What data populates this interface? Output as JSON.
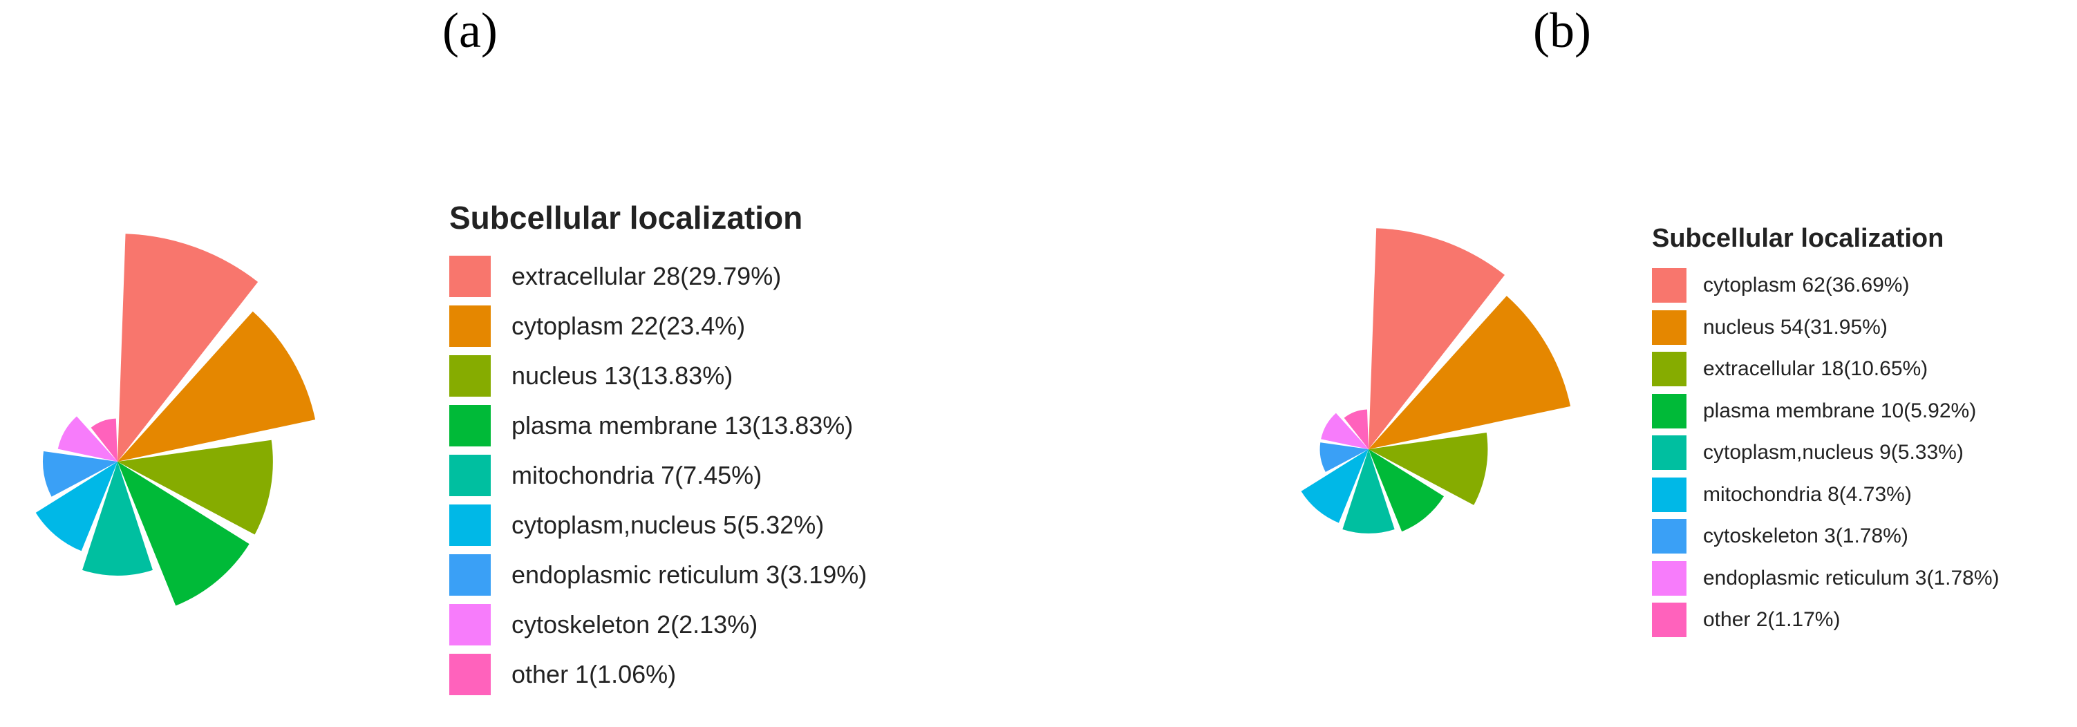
{
  "panels": [
    {
      "label": "(a)",
      "legend_title": "Subcellular localization",
      "items": [
        {
          "label": "extracellular 28(29.79%)",
          "color": "#F8766D"
        },
        {
          "label": "cytoplasm 22(23.4%)",
          "color": "#E58700"
        },
        {
          "label": "nucleus 13(13.83%)",
          "color": "#86AC00"
        },
        {
          "label": "plasma membrane 13(13.83%)",
          "color": "#00BA38"
        },
        {
          "label": "mitochondria 7(7.45%)",
          "color": "#00BFA0"
        },
        {
          "label": "cytoplasm,nucleus 5(5.32%)",
          "color": "#00B8E7"
        },
        {
          "label": "endoplasmic reticulum 3(3.19%)",
          "color": "#3AA0F6"
        },
        {
          "label": "cytoskeleton 2(2.13%)",
          "color": "#F77CFB"
        },
        {
          "label": "other 1(1.06%)",
          "color": "#FF62BC"
        }
      ]
    },
    {
      "label": "(b)",
      "legend_title": "Subcellular localization",
      "items": [
        {
          "label": "cytoplasm 62(36.69%)",
          "color": "#F8766D"
        },
        {
          "label": "nucleus 54(31.95%)",
          "color": "#E58700"
        },
        {
          "label": "extracellular 18(10.65%)",
          "color": "#86AC00"
        },
        {
          "label": "plasma membrane 10(5.92%)",
          "color": "#00BA38"
        },
        {
          "label": "cytoplasm,nucleus 9(5.33%)",
          "color": "#00BFA0"
        },
        {
          "label": "mitochondria 8(4.73%)",
          "color": "#00B8E7"
        },
        {
          "label": "cytoskeleton 3(1.78%)",
          "color": "#3AA0F6"
        },
        {
          "label": "endoplasmic reticulum 3(1.78%)",
          "color": "#F77CFB"
        },
        {
          "label": "other 2(1.17%)",
          "color": "#FF62BC"
        }
      ]
    }
  ],
  "chart_data": [
    {
      "type": "pie",
      "title": "",
      "legend_title": "Subcellular localization",
      "legend_position": "right",
      "categories": [
        "extracellular",
        "cytoplasm",
        "nucleus",
        "plasma membrane",
        "mitochondria",
        "cytoplasm,nucleus",
        "endoplasmic reticulum",
        "cytoskeleton",
        "other"
      ],
      "values": [
        28,
        22,
        13,
        13,
        7,
        5,
        3,
        2,
        1
      ],
      "percentages": [
        29.79,
        23.4,
        13.83,
        13.83,
        7.45,
        5.32,
        3.19,
        2.13,
        1.06
      ],
      "colors": [
        "#F8766D",
        "#E58700",
        "#86AC00",
        "#00BA38",
        "#00BFA0",
        "#00B8E7",
        "#3AA0F6",
        "#F77CFB",
        "#FF62BC"
      ]
    },
    {
      "type": "pie",
      "title": "",
      "legend_title": "Subcellular localization",
      "legend_position": "right",
      "categories": [
        "cytoplasm",
        "nucleus",
        "extracellular",
        "plasma membrane",
        "cytoplasm,nucleus",
        "mitochondria",
        "cytoskeleton",
        "endoplasmic reticulum",
        "other"
      ],
      "values": [
        62,
        54,
        18,
        10,
        9,
        8,
        3,
        3,
        2
      ],
      "percentages": [
        36.69,
        31.95,
        10.65,
        5.92,
        5.33,
        4.73,
        1.78,
        1.78,
        1.17
      ],
      "colors": [
        "#F8766D",
        "#E58700",
        "#86AC00",
        "#00BA38",
        "#00BFA0",
        "#00B8E7",
        "#3AA0F6",
        "#F77CFB",
        "#FF62BC"
      ]
    }
  ]
}
